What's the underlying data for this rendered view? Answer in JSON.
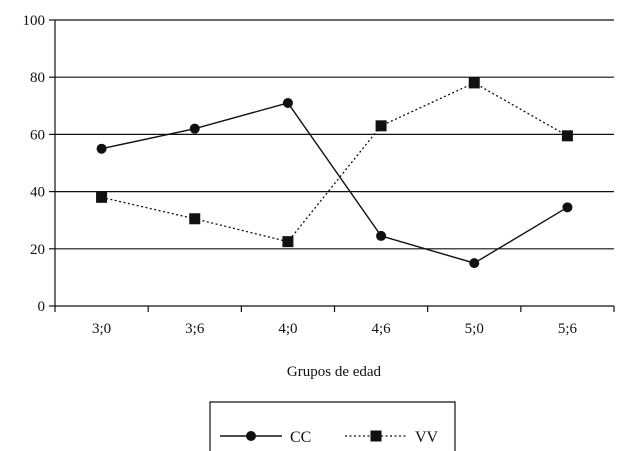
{
  "chart_data": {
    "type": "line",
    "categories": [
      "3;0",
      "3;6",
      "4;0",
      "4;6",
      "5;0",
      "5;6"
    ],
    "series": [
      {
        "name": "CC",
        "values": [
          55,
          62,
          71,
          24.5,
          15,
          34.5
        ],
        "marker": "circle",
        "line_style": "solid",
        "color": "#111111"
      },
      {
        "name": "VV",
        "values": [
          38,
          30.5,
          22.5,
          63,
          78,
          59.5
        ],
        "marker": "square",
        "line_style": "dotted",
        "color": "#111111"
      }
    ],
    "xlabel": "Grupos de edad",
    "ylabel": "",
    "ylim": [
      0,
      100
    ],
    "yticks": [
      0,
      20,
      40,
      60,
      80,
      100
    ],
    "grid": "horizontal",
    "legend_position": "bottom-center"
  }
}
